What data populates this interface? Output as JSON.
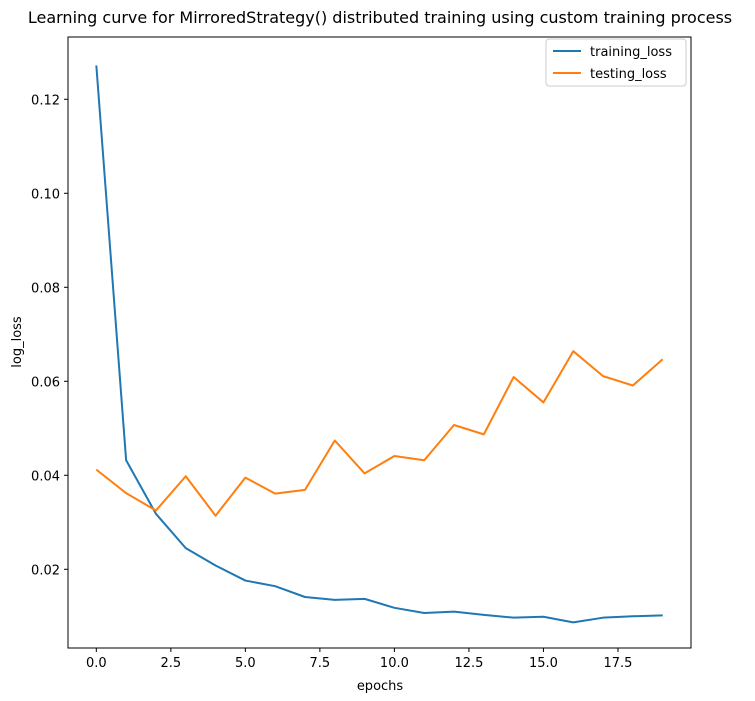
{
  "chart_data": {
    "type": "line",
    "title": "Learning curve for MirroredStrategy() distributed training using custom training process",
    "xlabel": "epochs",
    "ylabel": "log_loss",
    "xlim": [
      -0.95,
      19.95
    ],
    "ylim": [
      0.00325,
      0.13325
    ],
    "x_ticks": [
      0.0,
      2.5,
      5.0,
      7.5,
      10.0,
      12.5,
      15.0,
      17.5
    ],
    "x_tick_labels": [
      "0.0",
      "2.5",
      "5.0",
      "7.5",
      "10.0",
      "12.5",
      "15.0",
      "17.5"
    ],
    "y_ticks": [
      0.02,
      0.04,
      0.06,
      0.08,
      0.1,
      0.12
    ],
    "y_tick_labels": [
      "0.02",
      "0.04",
      "0.06",
      "0.08",
      "0.10",
      "0.12"
    ],
    "grid": false,
    "legend_position": "top-right",
    "x": [
      0,
      1,
      2,
      3,
      4,
      5,
      6,
      7,
      8,
      9,
      10,
      11,
      12,
      13,
      14,
      15,
      16,
      17,
      18,
      19
    ],
    "series": [
      {
        "name": "training_loss",
        "color": "#1f77b4",
        "values": [
          0.1272,
          0.0432,
          0.0318,
          0.0245,
          0.0208,
          0.0176,
          0.0164,
          0.0141,
          0.0135,
          0.0137,
          0.0118,
          0.0107,
          0.011,
          0.0103,
          0.0097,
          0.0099,
          0.0087,
          0.0097,
          0.01,
          0.0102
        ]
      },
      {
        "name": "testing_loss",
        "color": "#ff7f0e",
        "values": [
          0.0412,
          0.0362,
          0.0325,
          0.0398,
          0.0314,
          0.0395,
          0.0361,
          0.0369,
          0.0474,
          0.0404,
          0.0441,
          0.0432,
          0.0507,
          0.0487,
          0.0609,
          0.0555,
          0.0664,
          0.0611,
          0.0591,
          0.0647
        ]
      }
    ]
  }
}
